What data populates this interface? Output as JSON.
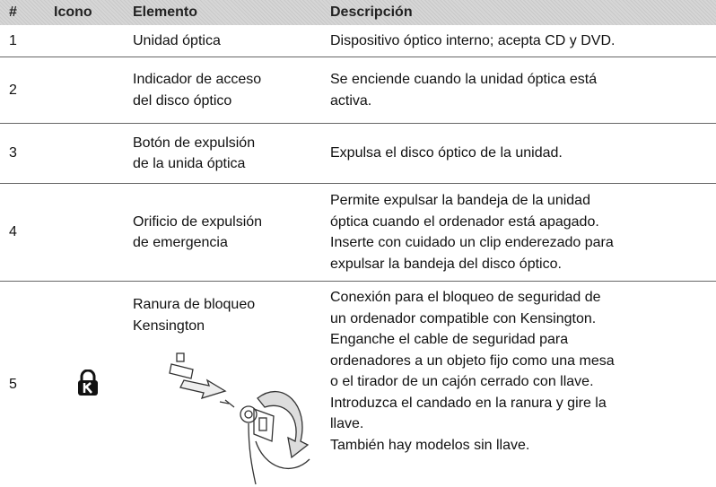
{
  "table": {
    "header": [
      "#",
      "Icono",
      "Elemento",
      "Descripción"
    ],
    "rows": [
      {
        "number": "1",
        "element": [
          "Unidad óptica"
        ],
        "description": [
          "Dispositivo óptico interno; acepta CD y DVD."
        ]
      },
      {
        "number": "2",
        "element": [
          "Indicador de acceso",
          "del disco óptico"
        ],
        "description": [
          "Se enciende cuando la unidad óptica está",
          "activa."
        ]
      },
      {
        "number": "3",
        "element": [
          "Botón de expulsión",
          "de la unida óptica"
        ],
        "description": [
          "Expulsa el disco óptico de la unidad."
        ]
      },
      {
        "number": "4",
        "element": [
          "Orificio de expulsión",
          "de emergencia"
        ],
        "description": [
          "Permite expulsar la bandeja de la unidad",
          "óptica cuando el ordenador está apagado.",
          "Inserte con cuidado un clip enderezado para",
          "expulsar la bandeja del disco óptico."
        ]
      },
      {
        "number": "5",
        "element": [
          "Ranura de bloqueo",
          "Kensington"
        ],
        "description": [
          "Conexión para el bloqueo de seguridad de",
          "un ordenador compatible con Kensington.",
          "Enganche el cable de seguridad para",
          "ordenadores a un objeto fijo como una mesa",
          "o el tirador de un cajón cerrado con llave.",
          "Introduzca el candado en la ranura y gire la",
          "llave.",
          "También hay modelos sin llave."
        ]
      }
    ]
  }
}
